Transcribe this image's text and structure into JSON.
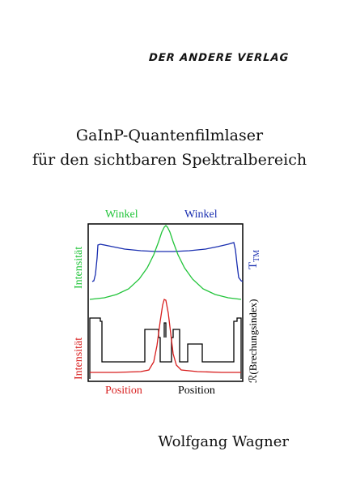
{
  "publisher": "DER ANDERE VERLAG",
  "title_line1": "GaInP-Quantenfilmlaser",
  "title_line2": "für den sichtbaren Spektralbereich",
  "author": "Wolfgang Wagner",
  "figure": {
    "top_label_left": "Winkel",
    "top_label_right": "Winkel",
    "y_left_upper": "Intensität",
    "y_left_lower": "Intensität",
    "y_right_upper_main": "T",
    "y_right_upper_sub": "TM",
    "y_right_lower": "ℛ(Brechungsindex)",
    "x_label_left": "Position",
    "x_label_right": "Position",
    "colors": {
      "green": "#22c43a",
      "blue": "#1a2fb0",
      "red": "#d81e1e",
      "black": "#000000"
    }
  }
}
